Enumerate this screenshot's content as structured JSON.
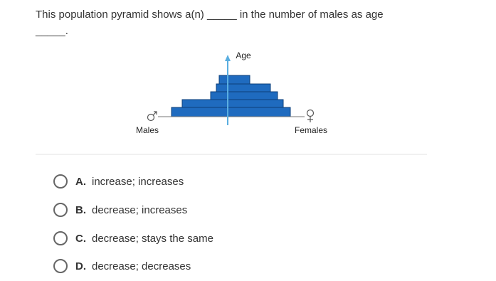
{
  "question": "This population pyramid shows a(n) _____ in the number of males as age _____.",
  "diagram": {
    "axis_label": "Age",
    "left_label": "Males",
    "right_label": "Females"
  },
  "options": [
    {
      "letter": "A.",
      "text": "increase; increases"
    },
    {
      "letter": "B.",
      "text": "decrease; increases"
    },
    {
      "letter": "C.",
      "text": "decrease; stays the same"
    },
    {
      "letter": "D.",
      "text": "decrease; decreases"
    }
  ]
}
